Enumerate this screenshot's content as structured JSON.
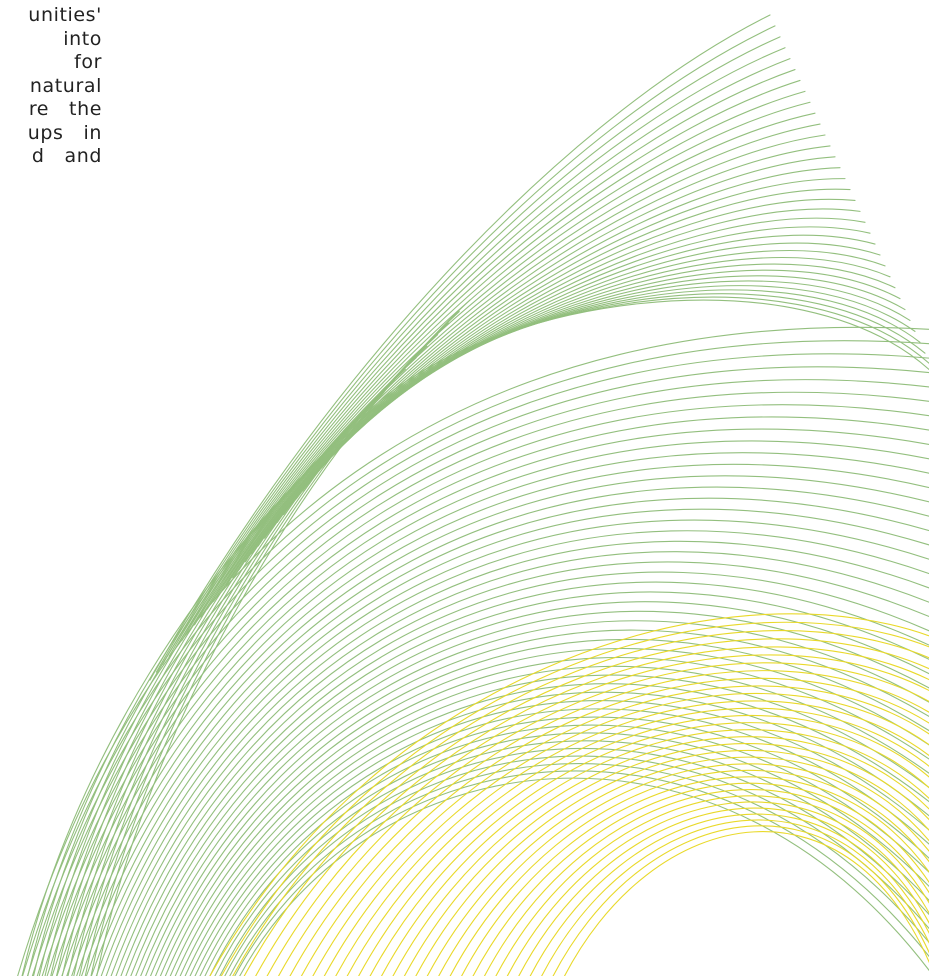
{
  "body_text": {
    "lines": [
      "unities'",
      "into",
      "for",
      "natural",
      "re   the",
      "ups   in",
      "d   and"
    ]
  },
  "decoration": {
    "green_color": "#93bf7e",
    "yellow_color": "#e9d92a"
  }
}
